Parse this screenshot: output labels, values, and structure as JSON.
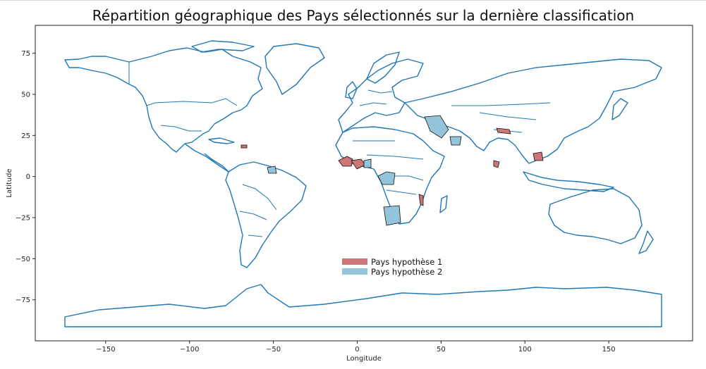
{
  "chart_data": {
    "type": "choropleth-map",
    "title": "Répartition géographique des Pays sélectionnés sur la dernière classification",
    "xlabel": "Longitude",
    "ylabel": "Latitude",
    "xlim": [
      -192,
      200
    ],
    "ylim": [
      -100,
      92
    ],
    "xticks": [
      -150,
      -100,
      -50,
      0,
      50,
      100,
      150
    ],
    "yticks": [
      75,
      50,
      25,
      0,
      -25,
      -50,
      -75
    ],
    "xtick_labels": [
      "−150",
      "−100",
      "−50",
      "0",
      "50",
      "100",
      "150"
    ],
    "ytick_labels": [
      "75",
      "50",
      "25",
      "0",
      "−25",
      "−50",
      "−75"
    ],
    "legend_position": "lower-center",
    "series": [
      {
        "name": "Pays hypothèse 1",
        "color": "#cd7577",
        "regions": [
          {
            "lon": -9,
            "lat": 9
          },
          {
            "lon": -2,
            "lat": 8
          },
          {
            "lon": 6,
            "lat": 8
          },
          {
            "lon": -72,
            "lat": 19
          },
          {
            "lon": 35,
            "lat": -13
          },
          {
            "lon": 84,
            "lat": 28
          },
          {
            "lon": 81,
            "lat": 8
          },
          {
            "lon": 105,
            "lat": 13
          }
        ]
      },
      {
        "name": "Pays hypothèse 2",
        "color": "#92c5dc",
        "regions": [
          {
            "lon": 45,
            "lat": 24
          },
          {
            "lon": 56,
            "lat": 21
          },
          {
            "lon": 12,
            "lat": 0
          },
          {
            "lon": 17,
            "lat": -22
          },
          {
            "lon": -58,
            "lat": 5
          }
        ]
      }
    ],
    "land_color": "#1f77b4"
  }
}
